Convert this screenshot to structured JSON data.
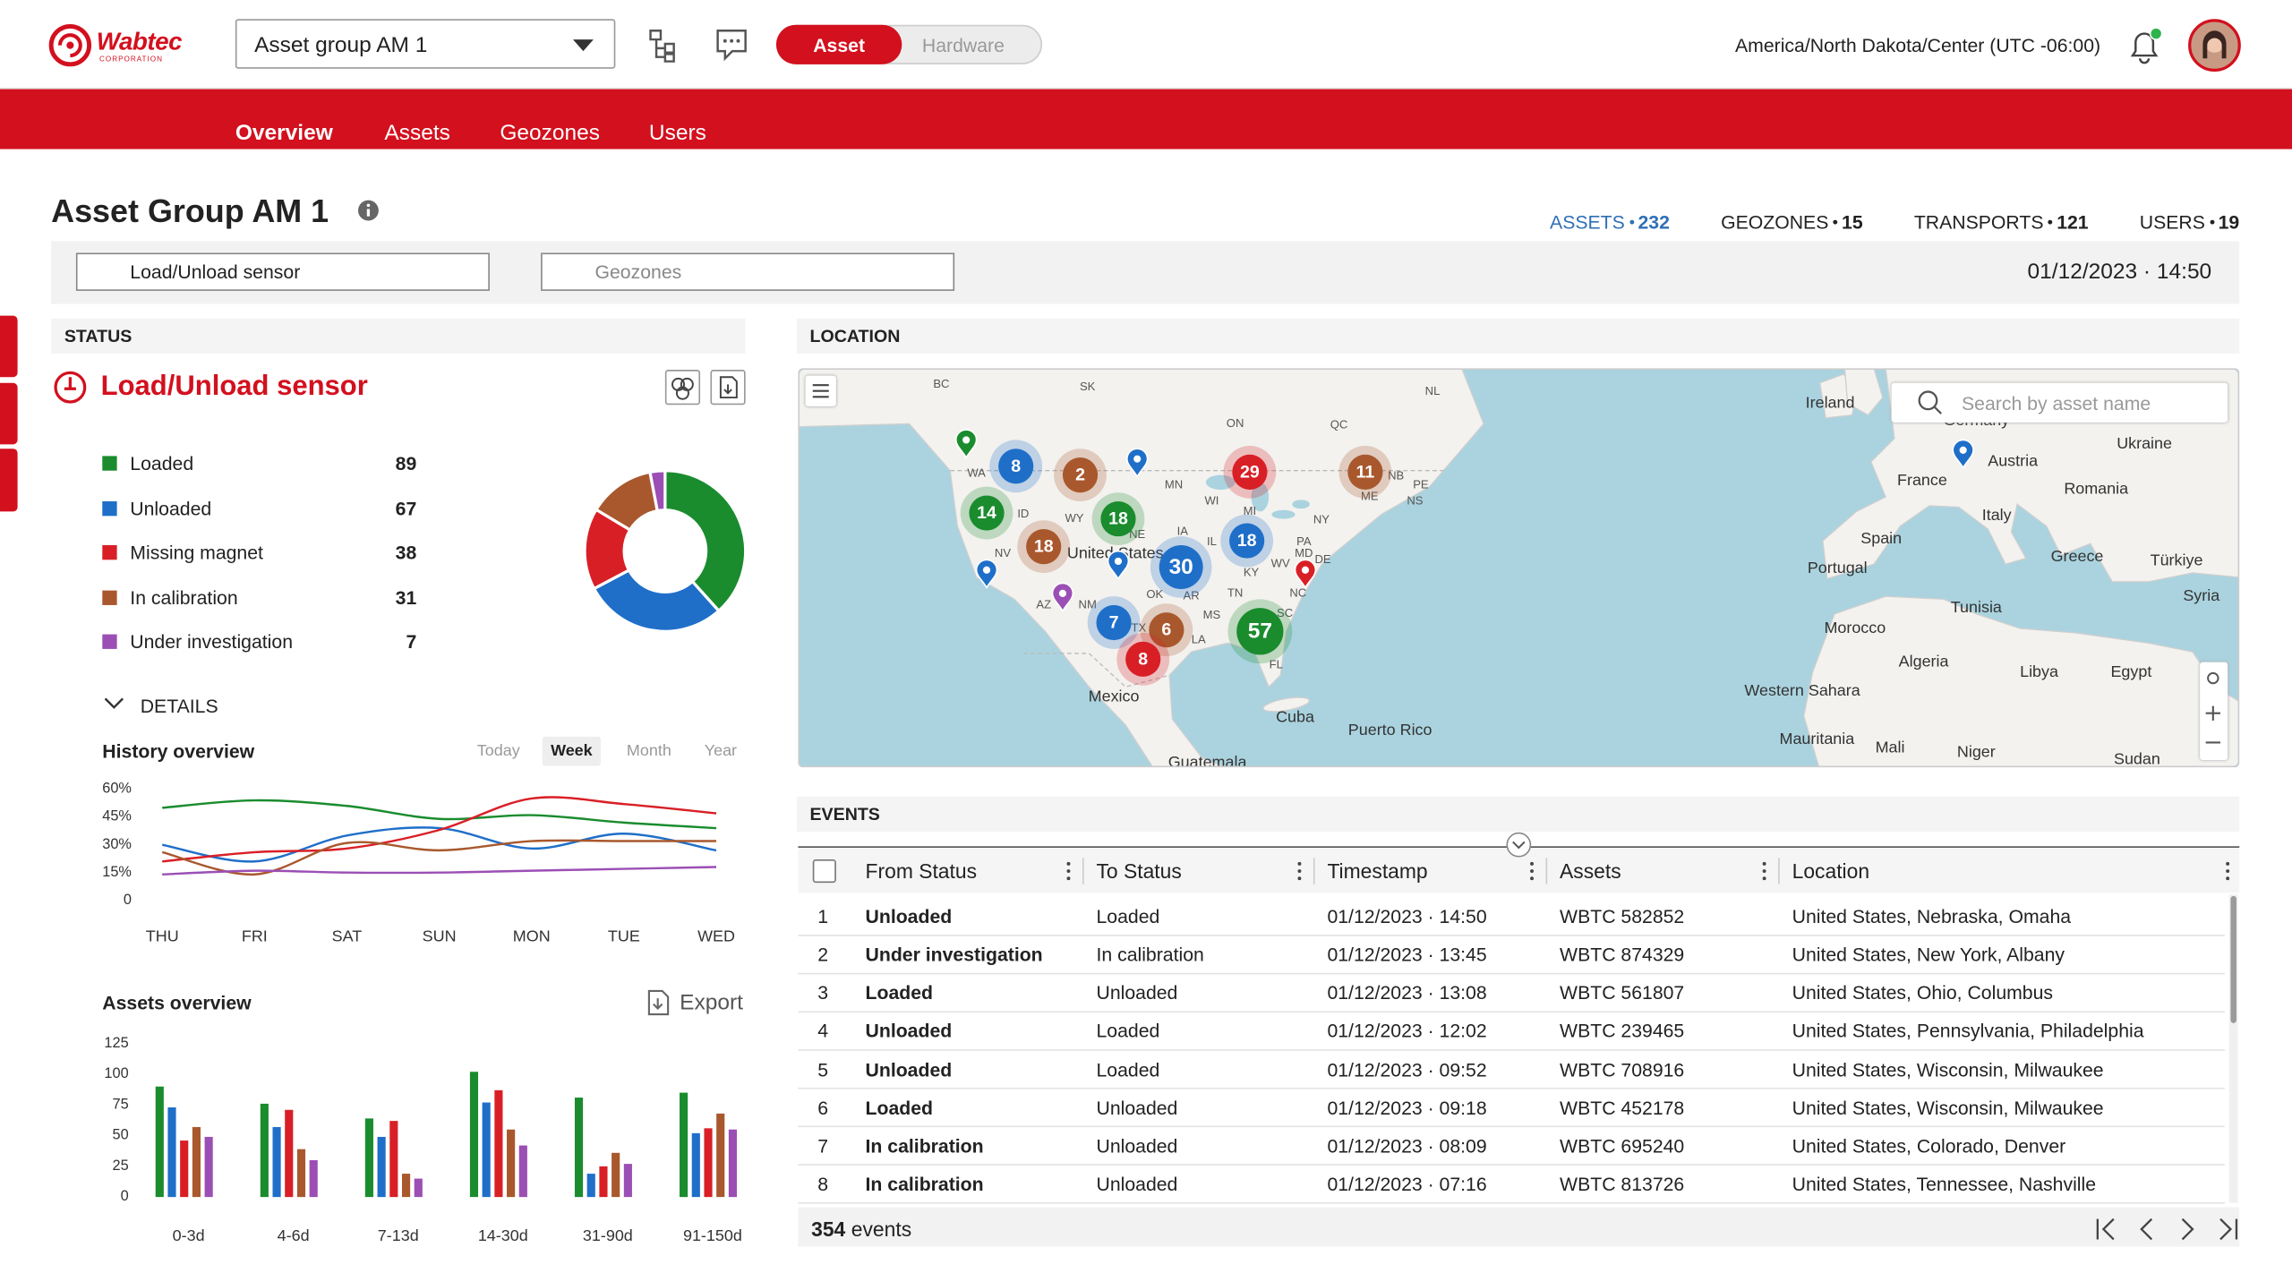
{
  "header": {
    "logo": "Wabtec",
    "logo_sub": "CORPORATION",
    "asset_group": "Asset group AM 1",
    "toggle": [
      {
        "label": "Asset",
        "active": true
      },
      {
        "label": "Hardware"
      }
    ],
    "timezone": "America/North Dakota/Center (UTC -06:00)"
  },
  "nav": [
    {
      "label": "Overview",
      "active": true
    },
    {
      "label": "Assets"
    },
    {
      "label": "Geozones"
    },
    {
      "label": "Users"
    }
  ],
  "page": {
    "title": "Asset Group AM 1",
    "stats": [
      {
        "label": "ASSETS",
        "value": 232,
        "highlight": true
      },
      {
        "label": "GEOZONES",
        "value": 15
      },
      {
        "label": "TRANSPORTS",
        "value": 121
      },
      {
        "label": "USERS",
        "value": 19
      }
    ],
    "filters": [
      "Load/Unload sensor",
      "Geozones"
    ],
    "datetime": "01/12/2023 · 14:50"
  },
  "status": {
    "heading": "STATUS",
    "title": "Load/Unload sensor",
    "details": "DETAILS"
  },
  "chart_data": [
    {
      "type": "pie",
      "donut": true,
      "categories": [
        "Loaded",
        "Unloaded",
        "Missing magnet",
        "In calibration",
        "Under investigation"
      ],
      "values": [
        89,
        67,
        38,
        31,
        7
      ],
      "colors": [
        "#1a8c2e",
        "#1f6fc9",
        "#d91f26",
        "#a9582d",
        "#9b4fb5"
      ]
    },
    {
      "type": "line",
      "title": "History overview",
      "ranges": [
        {
          "label": "Today"
        },
        {
          "label": "Week",
          "selected": true
        },
        {
          "label": "Month"
        },
        {
          "label": "Year"
        }
      ],
      "categories": [
        "THU",
        "FRI",
        "SAT",
        "SUN",
        "MON",
        "TUE",
        "WED"
      ],
      "ylim": [
        0,
        60
      ],
      "yticks": [
        0,
        {
          "value": 15,
          "label": "15%"
        },
        {
          "value": 30,
          "label": "30%"
        },
        {
          "value": 45,
          "label": "45%"
        },
        {
          "value": 60,
          "label": "60%"
        }
      ],
      "series": [
        {
          "color": "#1a8c2e",
          "values": [
            50,
            54,
            51,
            44,
            46,
            42,
            39
          ]
        },
        {
          "color": "#1f6fc9",
          "values": [
            30,
            21,
            35,
            39,
            28,
            36,
            27
          ]
        },
        {
          "color": "#d91f26",
          "values": [
            21,
            26,
            28,
            38,
            55,
            52,
            47
          ]
        },
        {
          "color": "#a9582d",
          "values": [
            26,
            14,
            31,
            27,
            32,
            32,
            32
          ]
        },
        {
          "color": "#9b4fb5",
          "values": [
            14,
            16,
            15,
            15,
            16,
            17,
            18
          ]
        }
      ]
    },
    {
      "type": "bar",
      "title": "Assets overview",
      "action": "Export",
      "categories": [
        "0-3d",
        "4-6d",
        "7-13d",
        "14-30d",
        "31-90d",
        "91-150d"
      ],
      "ylim": [
        0,
        125
      ],
      "yticks": [
        0,
        25,
        50,
        75,
        100,
        125
      ],
      "series": [
        {
          "color": "#1a8c2e",
          "values": [
            90,
            76,
            64,
            102,
            81,
            85
          ]
        },
        {
          "color": "#1f6fc9",
          "values": [
            73,
            57,
            49,
            77,
            19,
            52
          ]
        },
        {
          "color": "#d91f26",
          "values": [
            46,
            71,
            62,
            87,
            25,
            56
          ]
        },
        {
          "color": "#a9582d",
          "values": [
            57,
            39,
            19,
            55,
            36,
            68
          ]
        },
        {
          "color": "#9b4fb5",
          "values": [
            49,
            30,
            15,
            42,
            27,
            55
          ]
        }
      ]
    }
  ],
  "location": {
    "heading": "LOCATION",
    "search": "Search by asset name",
    "labels": [
      "BC",
      "SK",
      "ON",
      "QC",
      "NL",
      "WA",
      "ID",
      "WY",
      "MN",
      "WI",
      "MI",
      "NY",
      "NB",
      "PE",
      "NS",
      "ME",
      "NE",
      "IA",
      "IL",
      "PA",
      "NV",
      "MD",
      "DE",
      "United States",
      "KY",
      "WV",
      "OK",
      "AR",
      "TN",
      "NC",
      "AZ",
      "NM",
      "TX",
      "MS",
      "LA",
      "SC",
      "FL",
      "Mexico",
      "Cuba",
      "Puerto Rico",
      "Guatemala",
      "Ireland",
      "Germany",
      "Ukraine",
      "France",
      "Austria",
      "Romania",
      "Italy",
      "Spain",
      "Portugal",
      "Greece",
      "Türkiye",
      "Tunisia",
      "Syria",
      "Morocco",
      "Algeria",
      "Libya",
      "Egypt",
      "Western Sahara",
      "Mauritania",
      "Mali",
      "Niger",
      "Sudan"
    ],
    "clusters": [
      8,
      2,
      29,
      11,
      14,
      18,
      18,
      30,
      18,
      7,
      6,
      57,
      8
    ]
  },
  "events": {
    "heading": "EVENTS",
    "columns": [
      "From Status",
      "To Status",
      "Timestamp",
      "Assets",
      "Location"
    ],
    "rows": [
      [
        1,
        "Unloaded",
        "Loaded",
        "01/12/2023 · 14:50",
        "WBTC 582852",
        "United States, Nebraska, Omaha"
      ],
      [
        2,
        "Under investigation",
        "In calibration",
        "01/12/2023 · 13:45",
        "WBTC 874329",
        "United States, New York, Albany"
      ],
      [
        3,
        "Loaded",
        "Unloaded",
        "01/12/2023 · 13:08",
        "WBTC 561807",
        "United States, Ohio, Columbus"
      ],
      [
        4,
        "Unloaded",
        "Loaded",
        "01/12/2023 · 12:02",
        "WBTC 239465",
        "United States, Pennsylvania, Philadelphia"
      ],
      [
        5,
        "Unloaded",
        "Loaded",
        "01/12/2023 · 09:52",
        "WBTC 708916",
        "United States, Wisconsin, Milwaukee"
      ],
      [
        6,
        "Loaded",
        "Unloaded",
        "01/12/2023 · 09:18",
        "WBTC 452178",
        "United States, Wisconsin, Milwaukee"
      ],
      [
        7,
        "In calibration",
        "Unloaded",
        "01/12/2023 · 08:09",
        "WBTC 695240",
        "United States, Colorado, Denver"
      ],
      [
        8,
        "In calibration",
        "Unloaded",
        "01/12/2023 · 07:16",
        "WBTC 813726",
        "United States, Tennessee, Nashville"
      ]
    ],
    "count": 354,
    "count_label": "events"
  }
}
